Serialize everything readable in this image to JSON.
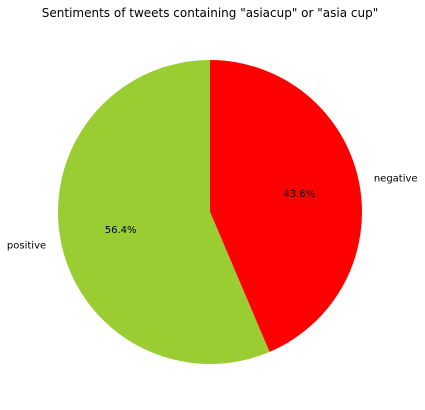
{
  "chart_data": {
    "type": "pie",
    "title": "Sentiments of tweets containing \"asiacup\" or \"asia cup\"",
    "slices": [
      {
        "label": "negative",
        "value": 43.6,
        "pct_label": "43.6%",
        "color": "#ff0000"
      },
      {
        "label": "positive",
        "value": 56.4,
        "pct_label": "56.4%",
        "color": "#9acd32"
      }
    ],
    "start_angle_deg": 90,
    "direction": "clockwise",
    "legend": "none"
  }
}
